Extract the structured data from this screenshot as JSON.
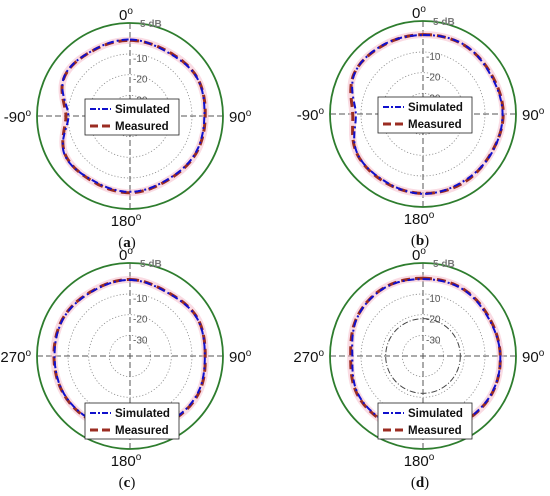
{
  "chart_data": [
    {
      "type": "polar",
      "panel_label_parts": [
        "(",
        "a",
        ")"
      ],
      "angle_labels": {
        "top": "0",
        "right": "90",
        "bottom": "180",
        "left": "-90"
      },
      "radial_unit_label": "5 dB",
      "radial_ticks": [
        "-10",
        "-20",
        "-30"
      ],
      "legend": [
        "Simulated",
        "Measured"
      ],
      "legend_position": "center",
      "rlim_db": [
        -40,
        5
      ],
      "angles_deg": [
        0,
        30,
        60,
        90,
        120,
        150,
        180,
        210,
        240,
        270,
        300,
        330
      ],
      "series": [
        {
          "name": "Simulated",
          "values_db": [
            -3.0,
            -4.2,
            -2.7,
            -4.0,
            -3.6,
            -4.3,
            -3.3,
            -4.0,
            -3.3,
            -10.2,
            -3.0,
            -3.5
          ]
        },
        {
          "name": "Measured",
          "values_db": [
            -3.4,
            -3.8,
            -2.6,
            -3.6,
            -3.3,
            -4.0,
            -2.9,
            -3.6,
            -3.6,
            -9.0,
            -3.1,
            -3.6
          ]
        }
      ]
    },
    {
      "type": "polar",
      "panel_label_parts": [
        "(",
        "b",
        ")"
      ],
      "angle_labels": {
        "top": "0",
        "right": "90",
        "bottom": "180",
        "left": "-90"
      },
      "radial_unit_label": "5 dB",
      "radial_ticks": [
        "-10",
        "-20",
        "-30"
      ],
      "legend": [
        "Simulated",
        "Measured"
      ],
      "legend_position": "center",
      "rlim_db": [
        -40,
        5
      ],
      "angles_deg": [
        0,
        30,
        60,
        90,
        120,
        150,
        180,
        210,
        240,
        270,
        300,
        330
      ],
      "series": [
        {
          "name": "Simulated",
          "values_db": [
            -1.8,
            -1.0,
            -2.2,
            -1.5,
            -1.8,
            -2.0,
            -1.4,
            -2.6,
            -3.0,
            -7.5,
            -1.6,
            -1.4
          ]
        },
        {
          "name": "Measured",
          "values_db": [
            -1.6,
            -1.2,
            -1.8,
            -1.2,
            -2.0,
            -1.4,
            -1.6,
            -2.2,
            -2.8,
            -6.0,
            -1.4,
            -1.6
          ]
        }
      ]
    },
    {
      "type": "polar",
      "panel_label_parts": [
        "(",
        "c",
        ")"
      ],
      "angle_labels": {
        "top": "0",
        "right": "90",
        "bottom": "180",
        "left": "270"
      },
      "radial_unit_label": "5 dB",
      "radial_ticks": [
        "-10",
        "-20",
        "-30"
      ],
      "legend": [
        "Simulated",
        "Measured"
      ],
      "legend_position": "bottom",
      "rlim_db": [
        -40,
        5
      ],
      "angles_deg": [
        0,
        30,
        60,
        90,
        120,
        150,
        180,
        210,
        240,
        270,
        300,
        330
      ],
      "series": [
        {
          "name": "Simulated",
          "values_db": [
            -3.2,
            -4.4,
            -2.8,
            -3.8,
            -2.6,
            -3.0,
            -3.4,
            -3.8,
            -3.2,
            -3.5,
            -3.0,
            -3.8
          ]
        },
        {
          "name": "Measured",
          "values_db": [
            -3.0,
            -4.2,
            -2.6,
            -3.6,
            -2.2,
            -2.8,
            -3.4,
            -3.4,
            -3.0,
            -3.2,
            -2.8,
            -3.6
          ]
        }
      ]
    },
    {
      "type": "polar",
      "panel_label_parts": [
        "(",
        "d",
        ")"
      ],
      "angle_labels": {
        "top": "0",
        "right": "90",
        "bottom": "180",
        "left": "270"
      },
      "radial_unit_label": "5 dB",
      "radial_ticks": [
        "-10",
        "-20",
        "-30"
      ],
      "legend": [
        "Simulated",
        "Measured"
      ],
      "legend_position": "bottom",
      "rlim_db": [
        -40,
        5
      ],
      "angles_deg": [
        0,
        30,
        60,
        90,
        120,
        150,
        180,
        210,
        240,
        270,
        300,
        330
      ],
      "series": [
        {
          "name": "Simulated",
          "values_db": [
            -2.8,
            -2.4,
            -3.4,
            -2.6,
            -2.2,
            -2.8,
            -2.6,
            -3.4,
            -3.6,
            -5.8,
            -3.2,
            -2.2
          ]
        },
        {
          "name": "Measured",
          "values_db": [
            -2.4,
            -2.2,
            -3.0,
            -2.6,
            -2.0,
            -2.6,
            -2.4,
            -3.0,
            -3.2,
            -5.0,
            -3.0,
            -2.0
          ]
        }
      ]
    }
  ],
  "colors": {
    "outer_circle": "#2e7d2e",
    "simulated": "#1010cc",
    "measured": "#9b2c22",
    "measured_glow": "#f5b8c8",
    "grid": "#8a8a8a"
  }
}
